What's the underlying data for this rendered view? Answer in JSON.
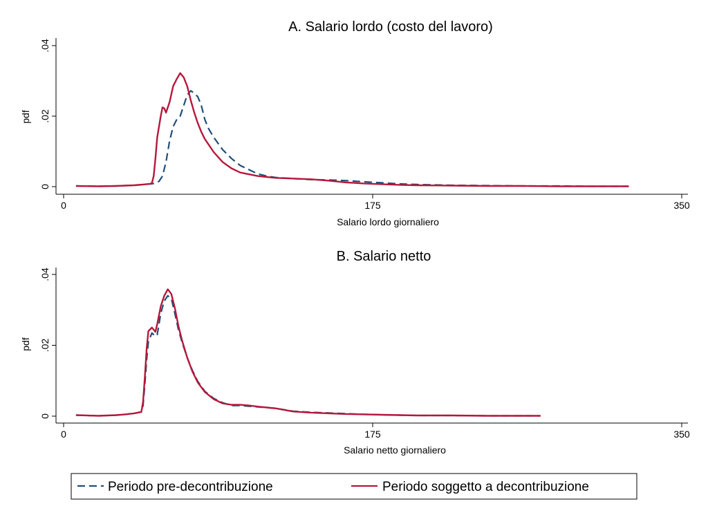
{
  "chart_data": [
    {
      "type": "line",
      "title": "A. Salario lordo (costo del lavoro)",
      "xlabel": "Salario lordo giornaliero",
      "ylabel": "pdf",
      "xlim": [
        0,
        350
      ],
      "ylim": [
        0,
        0.04
      ],
      "xticks": [
        0,
        175,
        350
      ],
      "xtick_labels": [
        "0",
        "175",
        "350"
      ],
      "yticks": [
        0,
        0.02,
        0.04
      ],
      "ytick_labels": [
        "0",
        ".02",
        ".04"
      ],
      "grid": false,
      "series": [
        {
          "name": "Periodo pre-decontribuzione",
          "style": "dashed",
          "color": "#1f4e79",
          "x": [
            7,
            20,
            30,
            40,
            45,
            50,
            52,
            54,
            56,
            58,
            60,
            62,
            64,
            66,
            68,
            70,
            72,
            74,
            76,
            78,
            80,
            82,
            85,
            90,
            95,
            100,
            105,
            110,
            115,
            120,
            130,
            140,
            150,
            160,
            170,
            180,
            190,
            200,
            220,
            240,
            260,
            280,
            300,
            320
          ],
          "y": [
            0.0002,
            0.0001,
            0.0002,
            0.0004,
            0.0006,
            0.0008,
            0.001,
            0.0015,
            0.003,
            0.007,
            0.013,
            0.017,
            0.019,
            0.02,
            0.023,
            0.026,
            0.0272,
            0.0265,
            0.0255,
            0.023,
            0.019,
            0.0165,
            0.014,
            0.0105,
            0.008,
            0.006,
            0.0048,
            0.0036,
            0.003,
            0.0026,
            0.0023,
            0.002,
            0.0019,
            0.0017,
            0.0014,
            0.0011,
            0.0008,
            0.0006,
            0.0004,
            0.0003,
            0.0002,
            0.0002,
            0.0001,
            0.0001
          ]
        },
        {
          "name": "Periodo soggetto a decontribuzione",
          "style": "solid",
          "color": "#b5173a",
          "x": [
            7,
            20,
            30,
            40,
            45,
            49,
            50,
            51,
            52,
            53,
            55,
            56,
            57,
            58,
            60,
            62,
            64,
            66,
            68,
            70,
            72,
            74,
            76,
            78,
            80,
            82,
            85,
            90,
            95,
            100,
            110,
            120,
            130,
            140,
            150,
            160,
            170,
            180,
            190,
            200,
            220,
            240,
            260,
            280,
            300,
            320
          ],
          "y": [
            0.0002,
            0.0001,
            0.0002,
            0.0004,
            0.0006,
            0.0008,
            0.001,
            0.003,
            0.008,
            0.014,
            0.02,
            0.0225,
            0.0222,
            0.021,
            0.024,
            0.0285,
            0.0305,
            0.0322,
            0.031,
            0.0285,
            0.0245,
            0.021,
            0.018,
            0.0155,
            0.0135,
            0.012,
            0.0098,
            0.007,
            0.0052,
            0.004,
            0.003,
            0.0025,
            0.0023,
            0.0021,
            0.0017,
            0.0012,
            0.0009,
            0.0007,
            0.0005,
            0.0004,
            0.0003,
            0.0002,
            0.0002,
            0.0001,
            0.0001,
            0.0001
          ]
        }
      ]
    },
    {
      "type": "line",
      "title": "B. Salario netto",
      "xlabel": "Salario netto giornaliero",
      "ylabel": "pdf",
      "xlim": [
        0,
        350
      ],
      "ylim": [
        0,
        0.04
      ],
      "xticks": [
        0,
        175,
        350
      ],
      "xtick_labels": [
        "0",
        "175",
        "350"
      ],
      "yticks": [
        0,
        0.02,
        0.04
      ],
      "ytick_labels": [
        "0",
        ".02",
        ".04"
      ],
      "grid": false,
      "series": [
        {
          "name": "Periodo pre-decontribuzione",
          "style": "dashed",
          "color": "#1f4e79",
          "x": [
            7,
            20,
            30,
            35,
            40,
            44,
            45,
            46,
            47,
            48,
            50,
            52,
            53,
            55,
            57,
            59,
            61,
            63,
            65,
            67,
            70,
            73,
            76,
            80,
            85,
            90,
            95,
            100,
            105,
            110,
            120,
            130,
            140,
            150,
            160,
            170,
            180,
            190,
            200,
            220,
            240,
            260,
            270
          ],
          "y": [
            0.0003,
            0.0001,
            0.0003,
            0.0005,
            0.0008,
            0.0012,
            0.003,
            0.009,
            0.016,
            0.021,
            0.0235,
            0.0225,
            0.023,
            0.029,
            0.0325,
            0.034,
            0.0332,
            0.029,
            0.0245,
            0.021,
            0.0165,
            0.0128,
            0.0098,
            0.007,
            0.005,
            0.0038,
            0.003,
            0.003,
            0.0028,
            0.0026,
            0.0022,
            0.0014,
            0.0011,
            0.0009,
            0.0007,
            0.0005,
            0.0004,
            0.0003,
            0.0002,
            0.0002,
            0.0001,
            0.0001,
            0.0001
          ]
        },
        {
          "name": "Periodo soggetto a decontribuzione",
          "style": "solid",
          "color": "#b5173a",
          "x": [
            7,
            20,
            30,
            35,
            40,
            44,
            45,
            46,
            47,
            48,
            50,
            52,
            53,
            55,
            57,
            59,
            61,
            63,
            65,
            67,
            70,
            73,
            76,
            80,
            85,
            90,
            95,
            100,
            105,
            110,
            120,
            130,
            140,
            150,
            160,
            170,
            180,
            190,
            200,
            220,
            240,
            260,
            270
          ],
          "y": [
            0.0003,
            0.0001,
            0.0003,
            0.0005,
            0.0008,
            0.0012,
            0.004,
            0.011,
            0.019,
            0.024,
            0.025,
            0.0238,
            0.026,
            0.031,
            0.034,
            0.0358,
            0.0345,
            0.0305,
            0.0255,
            0.0215,
            0.0165,
            0.0125,
            0.0095,
            0.0068,
            0.0048,
            0.0036,
            0.0032,
            0.0032,
            0.003,
            0.0027,
            0.0022,
            0.0013,
            0.001,
            0.0008,
            0.0006,
            0.0005,
            0.0004,
            0.0003,
            0.0002,
            0.0002,
            0.0001,
            0.0001,
            0.0001
          ]
        }
      ]
    }
  ],
  "legend": {
    "placement": "bottom",
    "items": [
      {
        "label": "Periodo pre-decontribuzione",
        "style": "dashed",
        "color": "#1f4e79"
      },
      {
        "label": "Periodo soggetto a decontribuzione",
        "style": "solid",
        "color": "#b5173a"
      }
    ]
  }
}
